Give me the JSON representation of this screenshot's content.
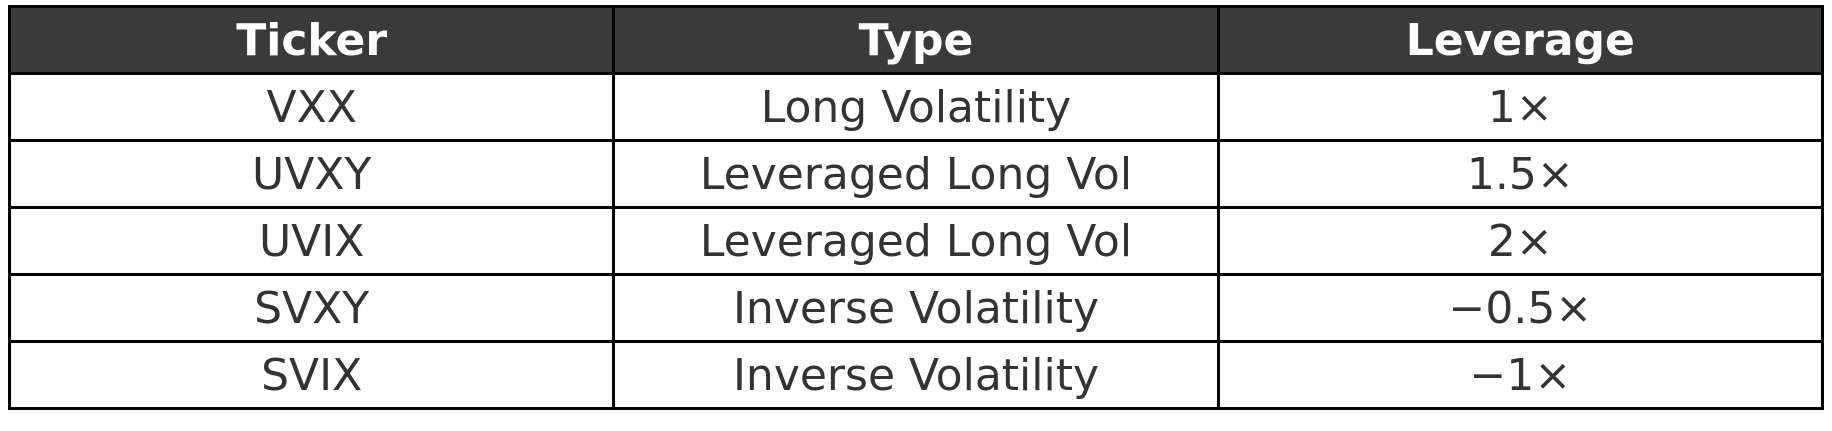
{
  "table": {
    "headers": [
      "Ticker",
      "Type",
      "Leverage"
    ],
    "rows": [
      [
        "VXX",
        "Long Volatility",
        "1×"
      ],
      [
        "UVXY",
        "Leveraged Long Vol",
        "1.5×"
      ],
      [
        "UVIX",
        "Leveraged Long Vol",
        "2×"
      ],
      [
        "SVXY",
        "Inverse Volatility",
        "−0.5×"
      ],
      [
        "SVIX",
        "Inverse Volatility",
        "−1×"
      ]
    ]
  }
}
